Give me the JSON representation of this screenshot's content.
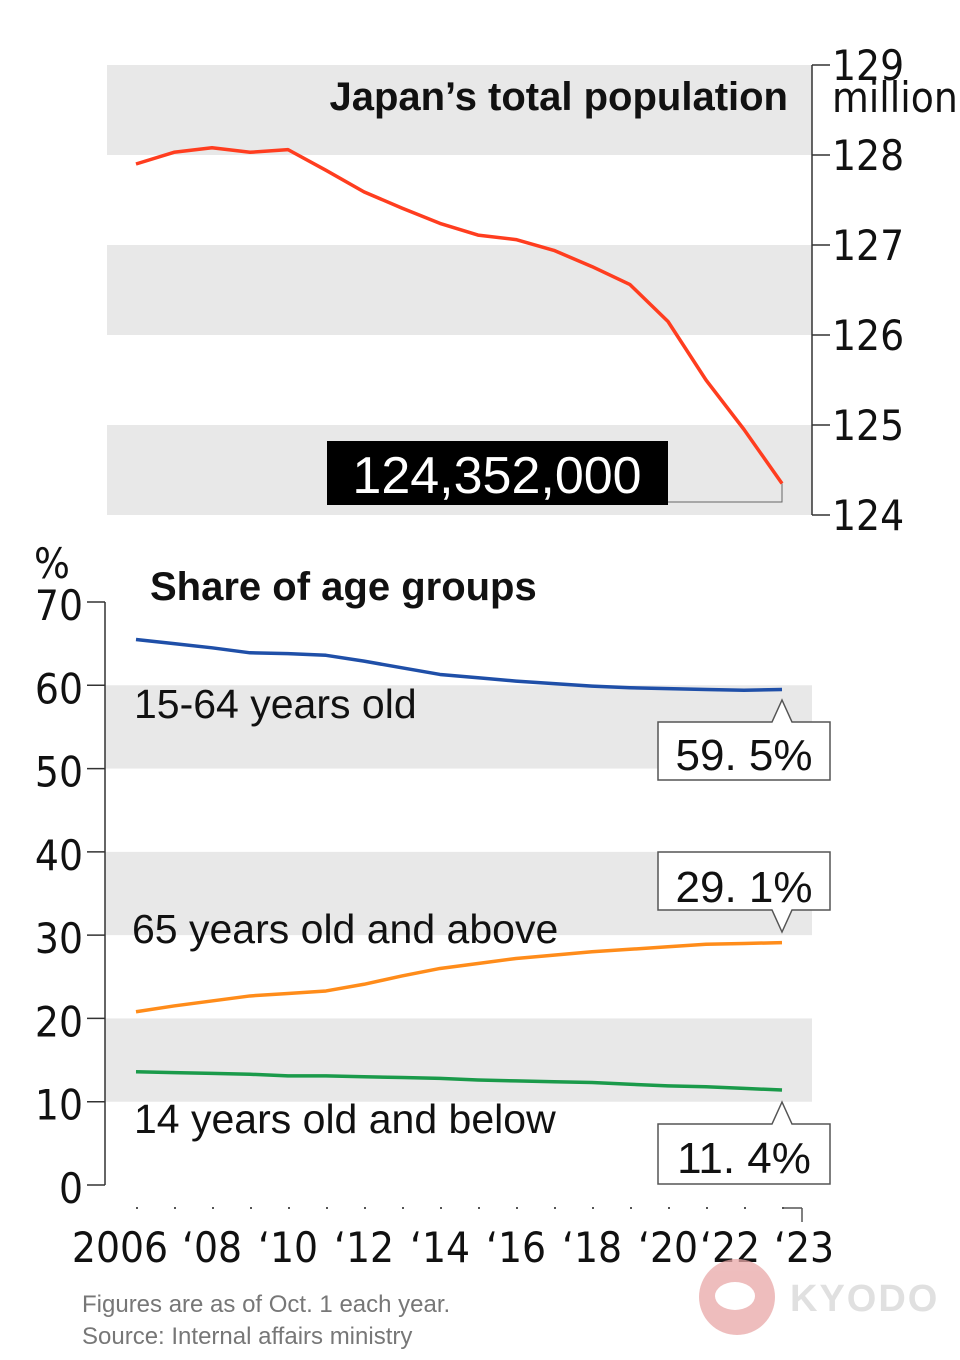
{
  "chart_data": [
    {
      "type": "line",
      "title": "Japan’s total population",
      "unit": "million",
      "ylim": [
        124,
        129
      ],
      "yticks": [
        "124",
        "125",
        "126",
        "127",
        "128",
        "129"
      ],
      "x": [
        2006,
        2007,
        2008,
        2009,
        2010,
        2011,
        2012,
        2013,
        2014,
        2015,
        2016,
        2017,
        2018,
        2019,
        2020,
        2021,
        2022,
        2023
      ],
      "series": [
        {
          "color": "#ff3d1f",
          "values": [
            127.9,
            128.03,
            128.08,
            128.03,
            128.06,
            127.83,
            127.59,
            127.41,
            127.24,
            127.11,
            127.06,
            126.94,
            126.76,
            126.56,
            126.15,
            125.5,
            124.95,
            124.35
          ]
        }
      ],
      "callout": "124,352,000"
    },
    {
      "type": "line",
      "title": "Share of age groups",
      "unit": "%",
      "ylim": [
        0,
        70
      ],
      "yticks": [
        "0",
        "10",
        "20",
        "30",
        "40",
        "50",
        "60",
        "70"
      ],
      "xticks": [
        "2006",
        "‘08",
        "‘10",
        "‘12",
        "‘14",
        "‘16",
        "‘18",
        "‘20",
        "‘22",
        "‘23"
      ],
      "x": [
        2006,
        2007,
        2008,
        2009,
        2010,
        2011,
        2012,
        2013,
        2014,
        2015,
        2016,
        2017,
        2018,
        2019,
        2020,
        2021,
        2022,
        2023
      ],
      "series": [
        {
          "name": "15-64 years old",
          "color": "#1f4fa8",
          "values": [
            65.5,
            65.0,
            64.5,
            63.9,
            63.8,
            63.6,
            62.9,
            62.1,
            61.3,
            60.9,
            60.5,
            60.2,
            59.9,
            59.7,
            59.6,
            59.5,
            59.4,
            59.5
          ],
          "callout": "59. 5%"
        },
        {
          "name": "65 years old and above",
          "color": "#ff8c1a",
          "values": [
            20.8,
            21.5,
            22.1,
            22.7,
            23.0,
            23.3,
            24.1,
            25.1,
            26.0,
            26.6,
            27.2,
            27.6,
            28.0,
            28.3,
            28.6,
            28.9,
            29.0,
            29.1
          ],
          "callout": "29. 1%"
        },
        {
          "name": "14 years old and below",
          "color": "#1a9a4a",
          "values": [
            13.6,
            13.5,
            13.4,
            13.3,
            13.1,
            13.1,
            13.0,
            12.9,
            12.8,
            12.6,
            12.5,
            12.4,
            12.3,
            12.1,
            11.9,
            11.8,
            11.6,
            11.4
          ],
          "callout": "11. 4%"
        }
      ]
    }
  ],
  "notes": [
    "Figures are as of Oct. 1 each year.",
    "Source: Internal affairs ministry"
  ],
  "logo": "KYODO",
  "colors": {
    "band": "#e8e8e8",
    "axis": "#333333",
    "callout_bg": "#000000"
  }
}
